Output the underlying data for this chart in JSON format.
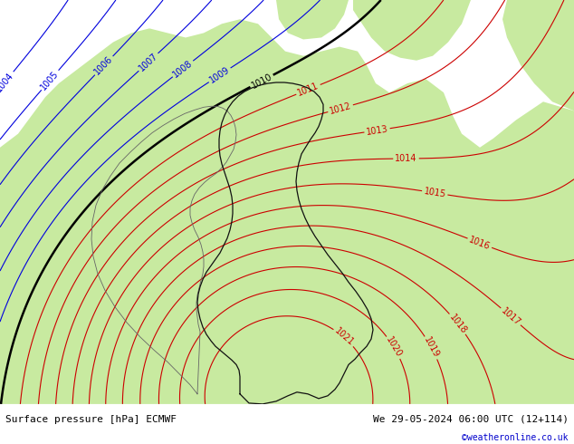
{
  "title_left": "Surface pressure [hPa] ECMWF",
  "title_right": "We 29-05-2024 06:00 UTC (12+114)",
  "credit": "©weatheronline.co.uk",
  "credit_color": "#0000cc",
  "bg_land_color": "#c8eaA0",
  "bg_sea_color": "#c0c0c0",
  "white_bar_color": "#ffffff",
  "blue_color": "#0000dd",
  "red_color": "#cc0000",
  "black_color": "#000000",
  "gray_outline_color": "#666666",
  "dark_outline_color": "#111111",
  "font_size_labels": 7,
  "font_size_bottom": 8,
  "font_size_credit": 7,
  "blue_levels": [
    1004,
    1005,
    1006,
    1007,
    1008,
    1009
  ],
  "black_level": 1010,
  "red_levels": [
    1011,
    1012,
    1013,
    1014,
    1015,
    1016,
    1017,
    1018,
    1019,
    1020,
    1021
  ]
}
